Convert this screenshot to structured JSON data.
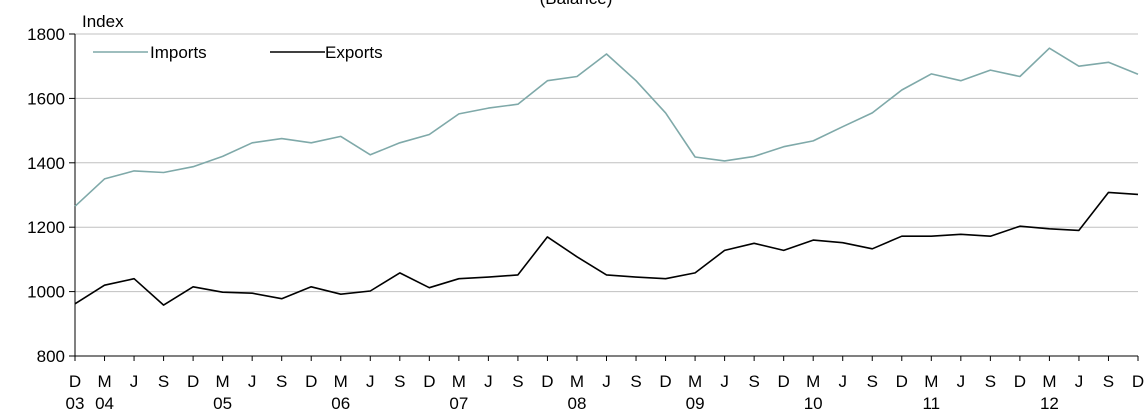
{
  "chart_data": {
    "type": "line",
    "title": "",
    "subtitle": "(Balance)",
    "ylabel": "Index",
    "xlabel": "",
    "ylim": [
      800,
      1800
    ],
    "yticks": [
      800,
      1000,
      1200,
      1400,
      1600,
      1800
    ],
    "grid": true,
    "legend": "top-left",
    "x_month_labels": [
      "D",
      "M",
      "J",
      "S",
      "D",
      "M",
      "J",
      "S",
      "D",
      "M",
      "J",
      "S",
      "D",
      "M",
      "J",
      "S",
      "D",
      "M",
      "J",
      "S",
      "D",
      "M",
      "J",
      "S",
      "D",
      "M",
      "J",
      "S",
      "D",
      "M",
      "J",
      "S",
      "D",
      "M",
      "J",
      "S",
      "D"
    ],
    "x_year_labels": [
      {
        "label": "03",
        "index": 0
      },
      {
        "label": "04",
        "index": 1
      },
      {
        "label": "05",
        "index": 5
      },
      {
        "label": "06",
        "index": 9
      },
      {
        "label": "07",
        "index": 13
      },
      {
        "label": "08",
        "index": 17
      },
      {
        "label": "09",
        "index": 21
      },
      {
        "label": "10",
        "index": 25
      },
      {
        "label": "11",
        "index": 29
      },
      {
        "label": "12",
        "index": 33
      }
    ],
    "series": [
      {
        "name": "Imports",
        "color": "#7fa9a9",
        "values": [
          1265,
          1350,
          1375,
          1370,
          1388,
          1420,
          1462,
          1475,
          1462,
          1482,
          1425,
          1462,
          1488,
          1552,
          1570,
          1582,
          1655,
          1668,
          1738,
          1655,
          1555,
          1418,
          1406,
          1420,
          1450,
          1468,
          1512,
          1555,
          1626,
          1676,
          1655,
          1688,
          1668,
          1756,
          1700,
          1712,
          1675
        ]
      },
      {
        "name": "Exports",
        "color": "#000000",
        "values": [
          962,
          1020,
          1040,
          958,
          1015,
          998,
          995,
          978,
          1015,
          992,
          1002,
          1058,
          1012,
          1040,
          1045,
          1052,
          1170,
          1108,
          1052,
          1045,
          1040,
          1058,
          1128,
          1150,
          1128,
          1160,
          1152,
          1133,
          1172,
          1172,
          1178,
          1172,
          1203,
          1195,
          1190,
          1308,
          1302
        ]
      }
    ]
  }
}
